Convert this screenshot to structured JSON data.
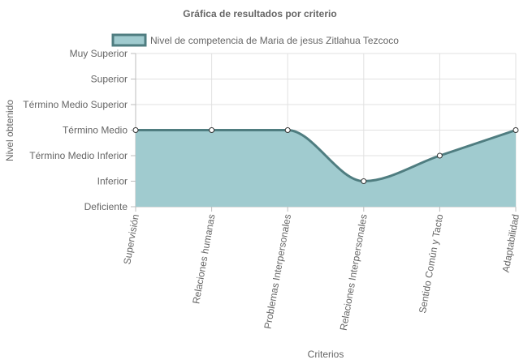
{
  "chart_data": {
    "type": "area",
    "title": "Gráfica de resultados por criterio",
    "xlabel": "Criterios",
    "ylabel": "Nivel obtenido",
    "categories": [
      "Supervisión",
      "Relaciones humanas",
      "Problemas Interpersonales",
      "Relaciones Interpersonales",
      "Sentido Común y Tacto",
      "Adaptabilidad"
    ],
    "y_levels": [
      "Deficiente",
      "Inferior",
      "Término Medio Inferior",
      "Término Medio",
      "Término Medio Superior",
      "Superior",
      "Muy Superior"
    ],
    "ylim": [
      0,
      6
    ],
    "series": [
      {
        "name": "Nivel de competencia de Maria de jesus Zitlahua Tezcoco",
        "values": [
          3,
          3,
          3,
          1,
          2,
          3
        ],
        "fill_color": "#a0cbcf",
        "line_color": "#4f7d80"
      }
    ],
    "grid": true,
    "legend_position": "top"
  }
}
